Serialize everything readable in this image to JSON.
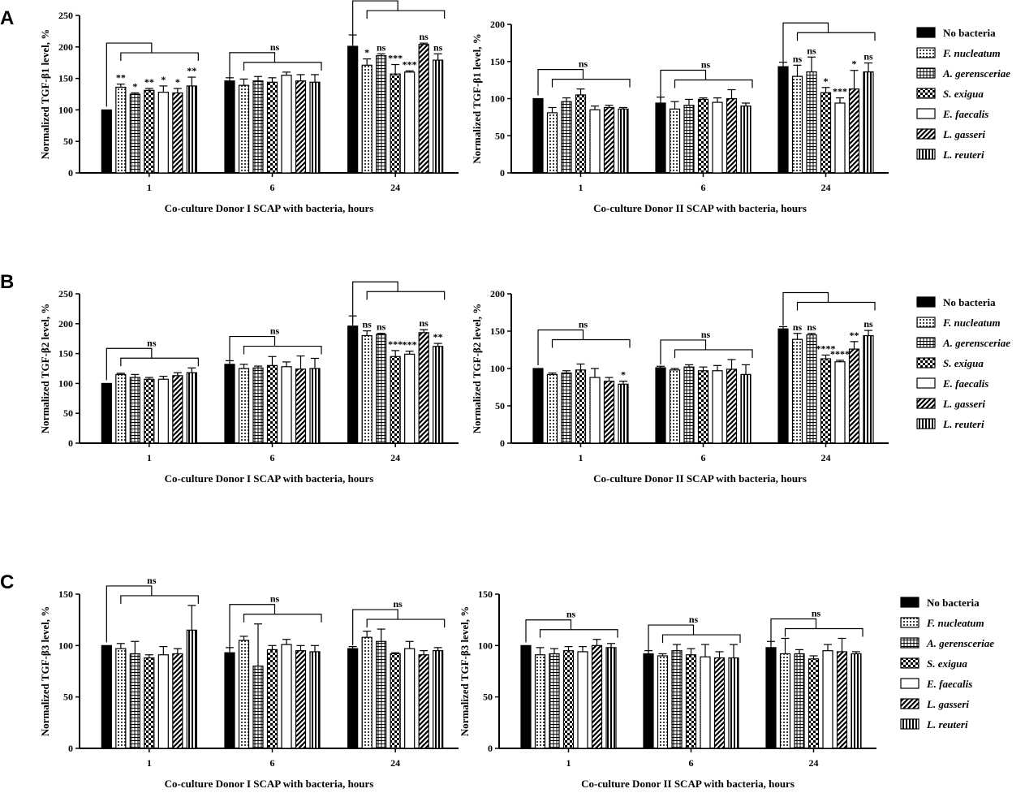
{
  "figure": {
    "legend": [
      {
        "label": "No bacteria",
        "pattern": "solid",
        "italic": false
      },
      {
        "label": "F. nucleatum",
        "pattern": "dots",
        "italic": true
      },
      {
        "label": "A. gerensceriae",
        "pattern": "grid",
        "italic": true
      },
      {
        "label": "S. exigua",
        "pattern": "checker",
        "italic": true
      },
      {
        "label": "E. faecalis",
        "pattern": "empty",
        "italic": true
      },
      {
        "label": "L. gasseri",
        "pattern": "diag",
        "italic": true
      },
      {
        "label": "L. reuteri",
        "pattern": "vert",
        "italic": true
      }
    ]
  },
  "chart_data": [
    {
      "type": "bar",
      "panel": "A",
      "ylabel": "Normalized TGF-β1 level, %",
      "xlabel": "Co-culture Donor I SCAP with bacteria, hours",
      "ylim": [
        0,
        250
      ],
      "yticks": [
        0,
        50,
        100,
        150,
        200,
        250
      ],
      "categories": [
        "1",
        "6",
        "24"
      ],
      "series": [
        {
          "name": "No bacteria",
          "values": [
            100,
            146,
            201
          ],
          "errors": [
            0,
            5,
            18
          ]
        },
        {
          "name": "F. nucleatum",
          "values": [
            136,
            139,
            171
          ],
          "errors": [
            5,
            10,
            10
          ]
        },
        {
          "name": "A. gerensceriae",
          "values": [
            125,
            146,
            186
          ],
          "errors": [
            2,
            7,
            3
          ]
        },
        {
          "name": "S. exigua",
          "values": [
            131,
            144,
            157
          ],
          "errors": [
            3,
            7,
            15
          ]
        },
        {
          "name": "E. faecalis",
          "values": [
            128,
            155,
            160
          ],
          "errors": [
            10,
            5,
            2
          ]
        },
        {
          "name": "L. gasseri",
          "values": [
            127,
            146,
            204
          ],
          "errors": [
            7,
            10,
            2
          ]
        },
        {
          "name": "L. reuteri",
          "values": [
            138,
            144,
            179
          ],
          "errors": [
            14,
            12,
            10
          ]
        }
      ],
      "sig": [
        [
          "",
          "",
          ""
        ],
        [
          "**",
          "",
          "*"
        ],
        [
          "*",
          "",
          "ns"
        ],
        [
          "**",
          "",
          "***"
        ],
        [
          "*",
          "",
          "***"
        ],
        [
          "*",
          "",
          "ns"
        ],
        [
          "**",
          "",
          "ns"
        ]
      ],
      "brackets": [
        "",
        "ns",
        ""
      ]
    },
    {
      "type": "bar",
      "panel": "A",
      "ylabel": "Normalized TGF-β1 level, %",
      "xlabel": "Co-culture Donor II SCAP with bacteria, hours",
      "ylim": [
        0,
        200
      ],
      "yticks": [
        0,
        50,
        100,
        150,
        200
      ],
      "categories": [
        "1",
        "6",
        "24"
      ],
      "series": [
        {
          "name": "No bacteria",
          "values": [
            100,
            94,
            143
          ],
          "errors": [
            0,
            8,
            6
          ]
        },
        {
          "name": "F. nucleatum",
          "values": [
            81,
            86,
            130
          ],
          "errors": [
            7,
            10,
            15
          ]
        },
        {
          "name": "A. gerensceriae",
          "values": [
            96,
            91,
            136
          ],
          "errors": [
            5,
            8,
            20
          ]
        },
        {
          "name": "S. exigua",
          "values": [
            105,
            99,
            108
          ],
          "errors": [
            8,
            2,
            7
          ]
        },
        {
          "name": "E. faecalis",
          "values": [
            85,
            95,
            94
          ],
          "errors": [
            5,
            6,
            7
          ]
        },
        {
          "name": "L. gasseri",
          "values": [
            88,
            100,
            113
          ],
          "errors": [
            3,
            12,
            25
          ]
        },
        {
          "name": "L. reuteri",
          "values": [
            86,
            90,
            136
          ],
          "errors": [
            2,
            4,
            12
          ]
        }
      ],
      "sig": [
        [
          "",
          "",
          ""
        ],
        [
          "",
          "",
          "ns"
        ],
        [
          "",
          "",
          "ns"
        ],
        [
          "",
          "",
          "*"
        ],
        [
          "",
          "",
          "***"
        ],
        [
          "",
          "",
          "*"
        ],
        [
          "",
          "",
          "ns"
        ]
      ],
      "brackets": [
        "ns",
        "ns",
        ""
      ]
    },
    {
      "type": "bar",
      "panel": "B",
      "ylabel": "Normalized TGF-β2 level, %",
      "xlabel": "Co-culture Donor I SCAP with bacteria, hours",
      "ylim": [
        0,
        250
      ],
      "yticks": [
        0,
        50,
        100,
        150,
        200,
        250
      ],
      "categories": [
        "1",
        "6",
        "24"
      ],
      "series": [
        {
          "name": "No bacteria",
          "values": [
            100,
            132,
            196
          ],
          "errors": [
            0,
            6,
            17
          ]
        },
        {
          "name": "F. nucleatum",
          "values": [
            115,
            125,
            180
          ],
          "errors": [
            2,
            7,
            8
          ]
        },
        {
          "name": "A. gerensceriae",
          "values": [
            110,
            126,
            182
          ],
          "errors": [
            5,
            3,
            2
          ]
        },
        {
          "name": "S. exigua",
          "values": [
            107,
            130,
            145
          ],
          "errors": [
            3,
            15,
            10
          ]
        },
        {
          "name": "E. faecalis",
          "values": [
            107,
            128,
            149
          ],
          "errors": [
            5,
            8,
            5
          ]
        },
        {
          "name": "L. gasseri",
          "values": [
            113,
            124,
            185
          ],
          "errors": [
            5,
            22,
            5
          ]
        },
        {
          "name": "L. reuteri",
          "values": [
            118,
            125,
            162
          ],
          "errors": [
            8,
            17,
            5
          ]
        }
      ],
      "sig": [
        [
          "",
          "",
          ""
        ],
        [
          "",
          "",
          "ns"
        ],
        [
          "",
          "",
          "ns"
        ],
        [
          "",
          "",
          "***"
        ],
        [
          "",
          "",
          "***"
        ],
        [
          "",
          "",
          "ns"
        ],
        [
          "",
          "",
          "**"
        ]
      ],
      "brackets": [
        "ns",
        "ns",
        ""
      ]
    },
    {
      "type": "bar",
      "panel": "B",
      "ylabel": "Normalized TGF-β2 level, %",
      "xlabel": "Co-culture Donor II SCAP with bacteria, hours",
      "ylim": [
        0,
        200
      ],
      "yticks": [
        0,
        50,
        100,
        150,
        200
      ],
      "categories": [
        "1",
        "6",
        "24"
      ],
      "series": [
        {
          "name": "No bacteria",
          "values": [
            100,
            101,
            153
          ],
          "errors": [
            0,
            2,
            3
          ]
        },
        {
          "name": "F. nucleatum",
          "values": [
            92,
            98,
            139
          ],
          "errors": [
            2,
            2,
            8
          ]
        },
        {
          "name": "A. gerensceriae",
          "values": [
            94,
            102,
            145
          ],
          "errors": [
            3,
            3,
            2
          ]
        },
        {
          "name": "S. exigua",
          "values": [
            98,
            97,
            113
          ],
          "errors": [
            8,
            5,
            5
          ]
        },
        {
          "name": "E. faecalis",
          "values": [
            88,
            97,
            109
          ],
          "errors": [
            12,
            7,
            2
          ]
        },
        {
          "name": "L. gasseri",
          "values": [
            83,
            99,
            126
          ],
          "errors": [
            5,
            13,
            10
          ]
        },
        {
          "name": "L. reuteri",
          "values": [
            79,
            92,
            144
          ],
          "errors": [
            4,
            13,
            7
          ]
        }
      ],
      "sig": [
        [
          "",
          "",
          ""
        ],
        [
          "",
          "",
          "ns"
        ],
        [
          "",
          "",
          "ns"
        ],
        [
          "",
          "",
          "****"
        ],
        [
          "",
          "",
          "****"
        ],
        [
          "",
          "",
          "**"
        ],
        [
          "*",
          "",
          "ns"
        ]
      ],
      "brackets": [
        "ns",
        "ns",
        ""
      ]
    },
    {
      "type": "bar",
      "panel": "C",
      "ylabel": "Normalized TGF-β3 level, %",
      "xlabel": "Co-culture Donor I  SCAP with bacteria, hours",
      "ylim": [
        0,
        150
      ],
      "yticks": [
        0,
        50,
        100,
        150
      ],
      "categories": [
        "1",
        "6",
        "24"
      ],
      "series": [
        {
          "name": "No bacteria",
          "values": [
            100,
            93,
            97
          ],
          "errors": [
            0,
            5,
            2
          ]
        },
        {
          "name": "F. nucleatum",
          "values": [
            97,
            105,
            108
          ],
          "errors": [
            5,
            4,
            6
          ]
        },
        {
          "name": "A. gerensceriae",
          "values": [
            92,
            80,
            104
          ],
          "errors": [
            12,
            41,
            12
          ]
        },
        {
          "name": "S. exigua",
          "values": [
            88,
            96,
            92
          ],
          "errors": [
            3,
            4,
            1
          ]
        },
        {
          "name": "E. faecalis",
          "values": [
            91,
            101,
            97
          ],
          "errors": [
            8,
            5,
            7
          ]
        },
        {
          "name": "L. gasseri",
          "values": [
            92,
            95,
            91
          ],
          "errors": [
            5,
            5,
            4
          ]
        },
        {
          "name": "L. reuteri",
          "values": [
            115,
            94,
            95
          ],
          "errors": [
            24,
            6,
            3
          ]
        }
      ],
      "sig": [
        [
          "",
          "",
          ""
        ],
        [
          "",
          "",
          ""
        ],
        [
          "",
          "",
          ""
        ],
        [
          "",
          "",
          ""
        ],
        [
          "",
          "",
          ""
        ],
        [
          "",
          "",
          ""
        ],
        [
          "",
          "",
          ""
        ]
      ],
      "brackets": [
        "ns",
        "ns",
        "ns"
      ]
    },
    {
      "type": "bar",
      "panel": "C",
      "ylabel": "Normalized TGF-β3 level, %",
      "xlabel": "Co-culture Donor II  SCAP with bacteria, hours",
      "ylim": [
        0,
        150
      ],
      "yticks": [
        0,
        50,
        100,
        150
      ],
      "categories": [
        "1",
        "6",
        "24"
      ],
      "series": [
        {
          "name": "No bacteria",
          "values": [
            100,
            92,
            98
          ],
          "errors": [
            0,
            3,
            6
          ]
        },
        {
          "name": "F. nucleatum",
          "values": [
            91,
            90,
            92
          ],
          "errors": [
            7,
            2,
            15
          ]
        },
        {
          "name": "A. gerensceriae",
          "values": [
            92,
            95,
            92
          ],
          "errors": [
            5,
            6,
            4
          ]
        },
        {
          "name": "S. exigua",
          "values": [
            95,
            91,
            87
          ],
          "errors": [
            4,
            6,
            3
          ]
        },
        {
          "name": "E. faecalis",
          "values": [
            94,
            89,
            95
          ],
          "errors": [
            5,
            12,
            6
          ]
        },
        {
          "name": "L. gasseri",
          "values": [
            100,
            88,
            94
          ],
          "errors": [
            6,
            6,
            13
          ]
        },
        {
          "name": "L. reuteri",
          "values": [
            98,
            88,
            92
          ],
          "errors": [
            4,
            13,
            2
          ]
        }
      ],
      "sig": [
        [
          "",
          "",
          ""
        ],
        [
          "",
          "",
          ""
        ],
        [
          "",
          "",
          ""
        ],
        [
          "",
          "",
          ""
        ],
        [
          "",
          "",
          ""
        ],
        [
          "",
          "",
          ""
        ],
        [
          "",
          "",
          ""
        ]
      ],
      "brackets": [
        "ns",
        "ns",
        "ns"
      ]
    }
  ]
}
